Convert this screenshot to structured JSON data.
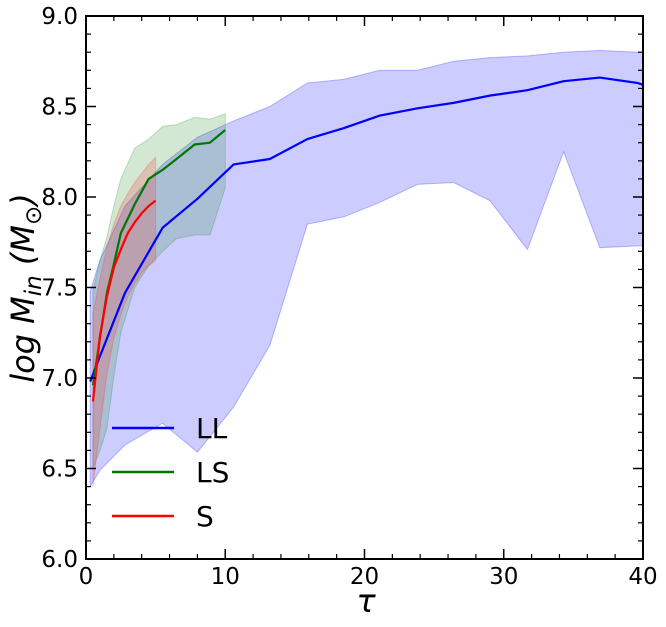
{
  "chart_data": {
    "type": "line",
    "xlabel": "τ",
    "ylabel_main": "log M",
    "ylabel_sub": "in",
    "ylabel_unit_open": " (M",
    "ylabel_unit_sym": "⊙",
    "ylabel_unit_close": ")",
    "xlim": [
      0,
      40
    ],
    "ylim": [
      6.0,
      9.0
    ],
    "xticks": [
      0,
      10,
      20,
      30,
      40
    ],
    "xtick_labels": [
      "0",
      "10",
      "20",
      "30",
      "40"
    ],
    "yticks": [
      6.0,
      6.5,
      7.0,
      7.5,
      8.0,
      8.5,
      9.0
    ],
    "ytick_labels": [
      "6.0",
      "6.5",
      "7.0",
      "7.5",
      "8.0",
      "8.5",
      "9.0"
    ],
    "legend_position": "lower-left",
    "series": [
      {
        "name": "LL",
        "color": "#0000ff",
        "band_color": "#0000ff",
        "x": [
          0.3,
          1.0,
          2.8,
          5.5,
          8.0,
          10.6,
          13.2,
          15.9,
          18.5,
          21.1,
          23.8,
          26.4,
          29.0,
          31.7,
          34.3,
          36.9,
          39.6,
          40.0
        ],
        "y": [
          6.98,
          7.12,
          7.47,
          7.83,
          7.99,
          8.18,
          8.21,
          8.32,
          8.38,
          8.45,
          8.49,
          8.52,
          8.56,
          8.59,
          8.64,
          8.66,
          8.63,
          8.62
        ],
        "upper": [
          7.48,
          7.65,
          7.95,
          8.18,
          8.33,
          8.42,
          8.5,
          8.63,
          8.65,
          8.7,
          8.7,
          8.75,
          8.77,
          8.78,
          8.8,
          8.81,
          8.8,
          8.8
        ],
        "lower": [
          6.4,
          6.49,
          6.63,
          6.75,
          6.59,
          6.84,
          7.18,
          7.85,
          7.89,
          7.97,
          8.07,
          8.08,
          7.98,
          7.71,
          8.25,
          7.72,
          7.73,
          7.73
        ]
      },
      {
        "name": "LS",
        "color": "#007700",
        "band_color": "#228b22",
        "x": [
          0.5,
          1.0,
          1.5,
          2.0,
          2.5,
          3.5,
          4.5,
          5.5,
          6.5,
          7.8,
          8.9,
          10.0
        ],
        "y": [
          6.96,
          7.22,
          7.47,
          7.63,
          7.8,
          7.96,
          8.1,
          8.15,
          8.21,
          8.29,
          8.3,
          8.37
        ],
        "upper": [
          7.48,
          7.65,
          7.78,
          7.95,
          8.1,
          8.27,
          8.32,
          8.39,
          8.4,
          8.44,
          8.43,
          8.46
        ],
        "lower": [
          6.5,
          6.6,
          6.72,
          7.01,
          7.25,
          7.5,
          7.62,
          7.7,
          7.77,
          7.79,
          7.79,
          8.05
        ]
      },
      {
        "name": "S",
        "color": "#ff0000",
        "band_color": "#ff2a2a",
        "x": [
          0.5,
          1.0,
          1.5,
          2.0,
          2.5,
          3.0,
          3.5,
          4.0,
          4.5,
          5.0
        ],
        "y": [
          6.87,
          7.23,
          7.45,
          7.61,
          7.71,
          7.8,
          7.86,
          7.91,
          7.95,
          7.98
        ],
        "upper": [
          7.35,
          7.55,
          7.72,
          7.85,
          7.95,
          8.02,
          8.08,
          8.13,
          8.18,
          8.22
        ],
        "lower": [
          6.4,
          6.72,
          7.02,
          7.22,
          7.35,
          7.45,
          7.52,
          7.58,
          7.62,
          7.65
        ]
      }
    ]
  }
}
